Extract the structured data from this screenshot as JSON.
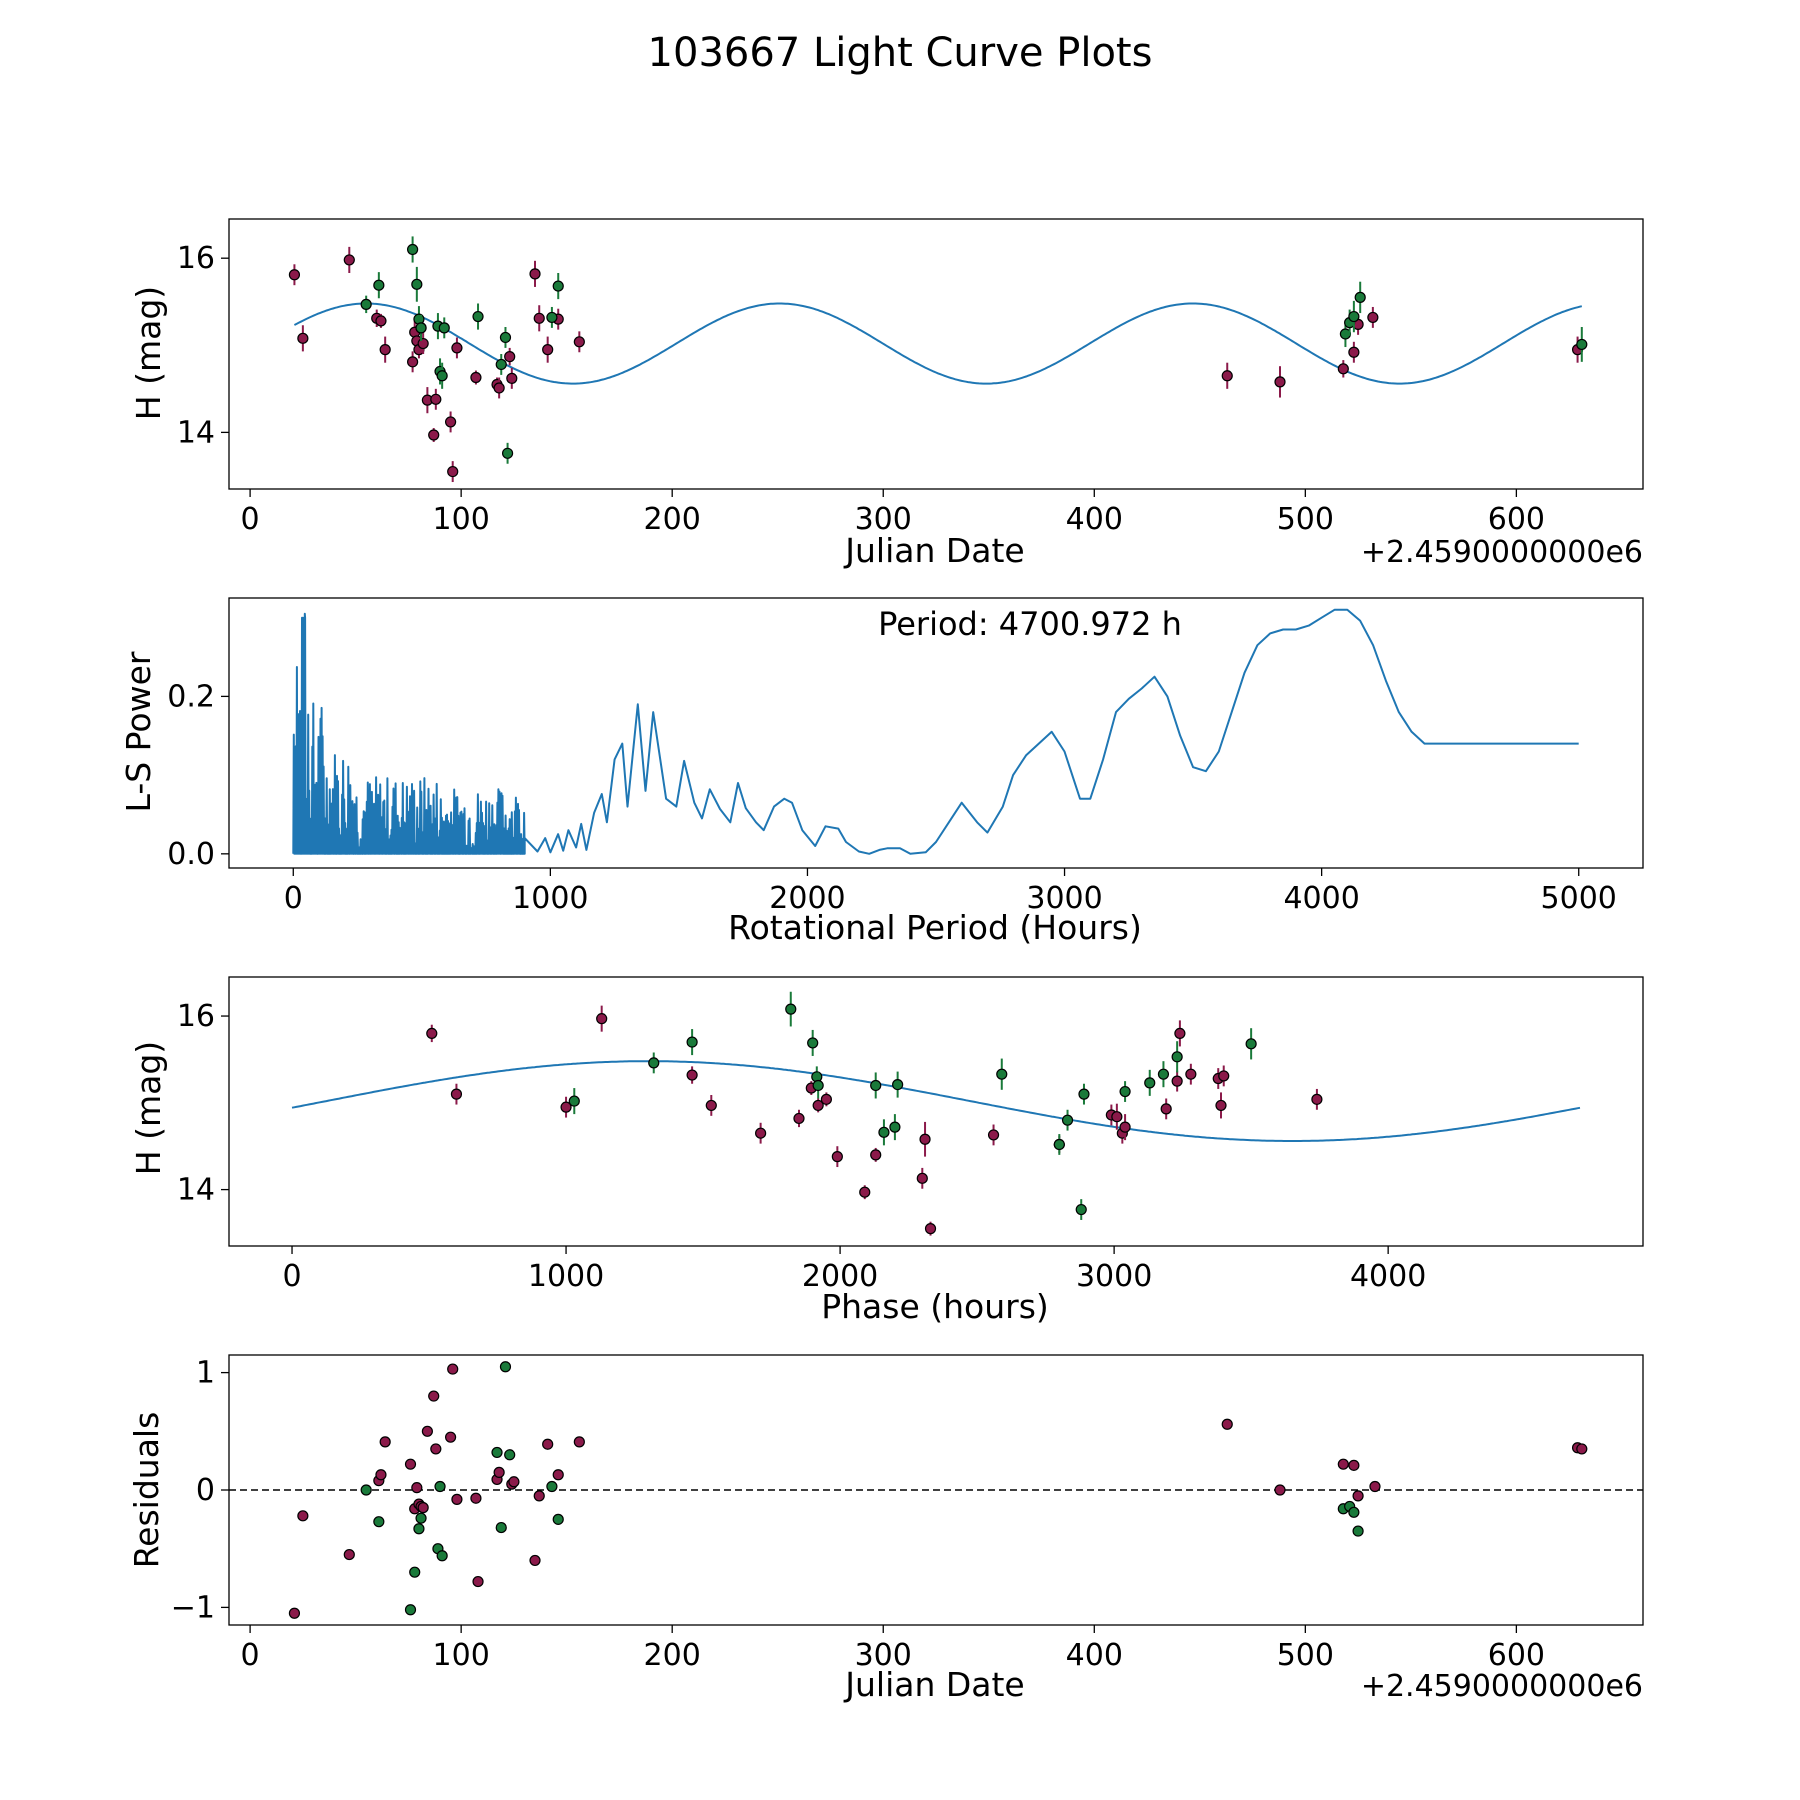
{
  "figure": {
    "title": "103667 Light Curve Plots"
  },
  "colors": {
    "line": "#1f77b4",
    "series_a": "#8b1a4a",
    "series_b": "#1a7a3a",
    "edge": "#000000",
    "frame": "#000000"
  },
  "chart_data": [
    {
      "id": "lightcurve",
      "type": "scatter",
      "xlabel": "Julian Date",
      "ylabel": "H (mag)",
      "x_offset_label": "+2.4590000000e6",
      "xlim": [
        -10,
        660
      ],
      "ylim": [
        13.35,
        16.45
      ],
      "xticks": [
        0,
        100,
        200,
        300,
        400,
        500,
        600
      ],
      "yticks": [
        14,
        16
      ],
      "fit_curve": {
        "mean": 15.02,
        "amplitude": 0.46,
        "period_days": 195.87,
        "x_range": [
          21,
          631
        ],
        "peak_x": 55
      },
      "series": [
        {
          "name": "maroon",
          "x": [
            21,
            25,
            47,
            60,
            62,
            64,
            77,
            78,
            79,
            80,
            81,
            82,
            84,
            87,
            88,
            95,
            96,
            98,
            107,
            117,
            118,
            123,
            124,
            135,
            137,
            141,
            146,
            156,
            463,
            488,
            518,
            523,
            525,
            532,
            629
          ],
          "y": [
            15.81,
            15.08,
            15.98,
            15.31,
            15.28,
            14.95,
            14.81,
            15.15,
            15.05,
            14.95,
            15.2,
            15.02,
            14.37,
            13.97,
            14.38,
            14.12,
            13.55,
            14.97,
            14.63,
            14.55,
            14.51,
            14.87,
            14.62,
            15.82,
            15.31,
            14.95,
            15.3,
            15.04,
            14.65,
            14.58,
            14.73,
            14.92,
            15.24,
            15.32,
            14.95
          ],
          "err": [
            0.12,
            0.15,
            0.15,
            0.1,
            0.08,
            0.15,
            0.12,
            0.15,
            0.12,
            0.1,
            0.15,
            0.12,
            0.15,
            0.08,
            0.12,
            0.12,
            0.12,
            0.12,
            0.08,
            0.08,
            0.12,
            0.1,
            0.12,
            0.15,
            0.15,
            0.15,
            0.12,
            0.12,
            0.15,
            0.18,
            0.1,
            0.12,
            0.12,
            0.12,
            0.15
          ]
        },
        {
          "name": "green",
          "x": [
            55,
            61,
            77,
            79,
            80,
            81,
            89,
            90,
            91,
            92,
            108,
            119,
            121,
            122,
            143,
            146,
            519,
            521,
            523,
            526,
            631
          ],
          "y": [
            15.47,
            15.69,
            16.1,
            15.7,
            15.3,
            15.2,
            15.22,
            14.7,
            14.65,
            15.2,
            15.33,
            14.78,
            15.09,
            13.76,
            15.32,
            15.68,
            15.13,
            15.26,
            15.33,
            15.55,
            15.01
          ],
          "err": [
            0.1,
            0.15,
            0.15,
            0.2,
            0.15,
            0.15,
            0.15,
            0.15,
            0.15,
            0.12,
            0.15,
            0.12,
            0.12,
            0.12,
            0.12,
            0.15,
            0.15,
            0.15,
            0.18,
            0.18,
            0.2
          ]
        }
      ]
    },
    {
      "id": "periodogram",
      "type": "line",
      "xlabel": "Rotational Period (Hours)",
      "ylabel": "L-S Power",
      "annotation": "Period: 4700.972 h",
      "xlim": [
        -250,
        5250
      ],
      "ylim": [
        -0.018,
        0.325
      ],
      "xticks": [
        0,
        1000,
        2000,
        3000,
        4000,
        5000
      ],
      "yticks": [
        0.0,
        0.2
      ],
      "ytick_labels": [
        "0.0",
        "0.2"
      ],
      "smooth": {
        "x": [
          900,
          950,
          980,
          1000,
          1030,
          1050,
          1070,
          1100,
          1120,
          1140,
          1170,
          1200,
          1220,
          1250,
          1280,
          1300,
          1340,
          1370,
          1400,
          1450,
          1490,
          1520,
          1560,
          1590,
          1620,
          1660,
          1700,
          1730,
          1760,
          1800,
          1830,
          1870,
          1910,
          1940,
          1980,
          2030,
          2070,
          2120,
          2150,
          2200,
          2240,
          2280,
          2310,
          2360,
          2400,
          2460,
          2500,
          2560,
          2600,
          2660,
          2700,
          2760,
          2800,
          2850,
          2900,
          2950,
          3000,
          3060,
          3100,
          3150,
          3200,
          3250,
          3300,
          3350,
          3400,
          3450,
          3500,
          3550,
          3600,
          3650,
          3700,
          3750,
          3800,
          3850,
          3900,
          3950,
          4000,
          4050,
          4100,
          4150,
          4200,
          4250,
          4300,
          4350,
          4400,
          4450,
          4500,
          4550,
          4600,
          4650,
          4700,
          4750,
          4800,
          4850,
          4900,
          4950,
          5000
        ],
        "y": [
          0.02,
          0.003,
          0.02,
          0.002,
          0.025,
          0.004,
          0.03,
          0.008,
          0.038,
          0.005,
          0.052,
          0.076,
          0.04,
          0.12,
          0.14,
          0.06,
          0.19,
          0.08,
          0.18,
          0.07,
          0.06,
          0.118,
          0.065,
          0.045,
          0.082,
          0.057,
          0.04,
          0.09,
          0.058,
          0.04,
          0.03,
          0.06,
          0.07,
          0.065,
          0.03,
          0.01,
          0.035,
          0.032,
          0.015,
          0.003,
          0.0,
          0.005,
          0.007,
          0.007,
          0.0,
          0.002,
          0.015,
          0.045,
          0.065,
          0.04,
          0.027,
          0.06,
          0.1,
          0.125,
          0.14,
          0.155,
          0.13,
          0.07,
          0.07,
          0.12,
          0.18,
          0.197,
          0.21,
          0.225,
          0.2,
          0.15,
          0.11,
          0.105,
          0.13,
          0.18,
          0.23,
          0.265,
          0.28,
          0.285,
          0.285,
          0.29,
          0.3,
          0.31,
          0.31,
          0.296,
          0.265,
          0.22,
          0.18,
          0.155,
          0.14,
          0.14,
          0.14,
          0.14,
          0.14,
          0.14,
          0.14,
          0.14,
          0.14,
          0.14,
          0.14,
          0.14,
          0.14
        ]
      }
    },
    {
      "id": "phased",
      "type": "scatter",
      "xlabel": "Phase (hours)",
      "ylabel": "H (mag)",
      "xlim": [
        -230,
        4930
      ],
      "ylim": [
        13.35,
        16.45
      ],
      "xticks": [
        0,
        1000,
        2000,
        3000,
        4000
      ],
      "yticks": [
        14,
        16
      ],
      "fit_curve": {
        "mean": 15.02,
        "amplitude": 0.46,
        "period_hours": 4700.972,
        "x_range": [
          0,
          4700
        ],
        "peak_x": 1300
      },
      "series": [
        {
          "name": "maroon",
          "x": [
            510,
            600,
            1000,
            1130,
            1460,
            1530,
            1710,
            1850,
            1895,
            1920,
            1950,
            1990,
            2090,
            2130,
            2300,
            2310,
            2330,
            2560,
            2800,
            2990,
            3010,
            3030,
            3040,
            3190,
            3230,
            3240,
            3280,
            3380,
            3390,
            3400,
            3740
          ],
          "y": [
            15.8,
            15.1,
            14.95,
            15.97,
            15.32,
            14.97,
            14.65,
            14.82,
            15.17,
            14.97,
            15.04,
            14.38,
            13.97,
            14.4,
            14.13,
            14.58,
            13.55,
            14.63,
            14.52,
            14.86,
            14.84,
            14.65,
            14.72,
            14.93,
            15.25,
            15.8,
            15.33,
            15.28,
            14.97,
            15.31,
            15.04
          ],
          "err": [
            0.1,
            0.12,
            0.12,
            0.15,
            0.1,
            0.12,
            0.12,
            0.1,
            0.08,
            0.08,
            0.08,
            0.12,
            0.08,
            0.08,
            0.12,
            0.2,
            0.08,
            0.12,
            0.1,
            0.12,
            0.15,
            0.12,
            0.15,
            0.12,
            0.12,
            0.15,
            0.12,
            0.12,
            0.15,
            0.12,
            0.12
          ]
        },
        {
          "name": "green",
          "x": [
            1030,
            1320,
            1460,
            1820,
            1900,
            1915,
            1920,
            2130,
            2160,
            2200,
            2210,
            2590,
            2800,
            2830,
            2890,
            2880,
            3040,
            3130,
            3180,
            3230,
            3500
          ],
          "y": [
            15.02,
            15.46,
            15.7,
            16.08,
            15.69,
            15.3,
            15.2,
            15.2,
            14.66,
            14.72,
            15.21,
            15.33,
            14.52,
            14.8,
            15.1,
            13.77,
            15.13,
            15.23,
            15.33,
            15.53,
            15.68
          ],
          "err": [
            0.15,
            0.12,
            0.15,
            0.2,
            0.15,
            0.12,
            0.15,
            0.15,
            0.15,
            0.15,
            0.15,
            0.18,
            0.12,
            0.12,
            0.12,
            0.12,
            0.12,
            0.15,
            0.15,
            0.18,
            0.18
          ]
        }
      ]
    },
    {
      "id": "residuals",
      "type": "scatter",
      "xlabel": "Julian Date",
      "ylabel": "Residuals",
      "x_offset_label": "+2.4590000000e6",
      "xlim": [
        -10,
        660
      ],
      "ylim": [
        -1.15,
        1.15
      ],
      "xticks": [
        0,
        100,
        200,
        300,
        400,
        500,
        600
      ],
      "yticks": [
        -1,
        0,
        1
      ],
      "ytick_labels": [
        "−1",
        "0",
        "1"
      ],
      "reference_line": 0,
      "series": [
        {
          "name": "maroon",
          "x": [
            21,
            25,
            47,
            61,
            62,
            64,
            76,
            78,
            79,
            80,
            81,
            82,
            84,
            87,
            88,
            95,
            96,
            98,
            107,
            108,
            117,
            118,
            124,
            125,
            135,
            137,
            141,
            146,
            156,
            463,
            488,
            518,
            523,
            525,
            533,
            629,
            631
          ],
          "y": [
            -1.05,
            -0.22,
            -0.55,
            0.08,
            0.13,
            0.41,
            0.22,
            -0.16,
            0.02,
            -0.12,
            -0.14,
            -0.15,
            0.5,
            0.8,
            0.35,
            0.45,
            1.03,
            -0.08,
            -0.07,
            -0.78,
            0.09,
            0.15,
            0.05,
            0.07,
            -0.6,
            -0.05,
            0.39,
            0.13,
            0.41,
            0.56,
            0.0,
            0.22,
            0.21,
            -0.05,
            0.03,
            0.36,
            0.35
          ],
          "err": []
        },
        {
          "name": "green",
          "x": [
            55,
            61,
            76,
            78,
            80,
            81,
            89,
            90,
            91,
            117,
            119,
            121,
            123,
            143,
            146,
            518,
            521,
            523,
            525
          ],
          "y": [
            0.0,
            -0.27,
            -1.02,
            -0.7,
            -0.33,
            -0.24,
            -0.5,
            0.03,
            -0.56,
            0.32,
            -0.32,
            1.05,
            0.3,
            0.03,
            -0.25,
            -0.16,
            -0.14,
            -0.19,
            -0.35
          ],
          "err": []
        }
      ]
    }
  ]
}
